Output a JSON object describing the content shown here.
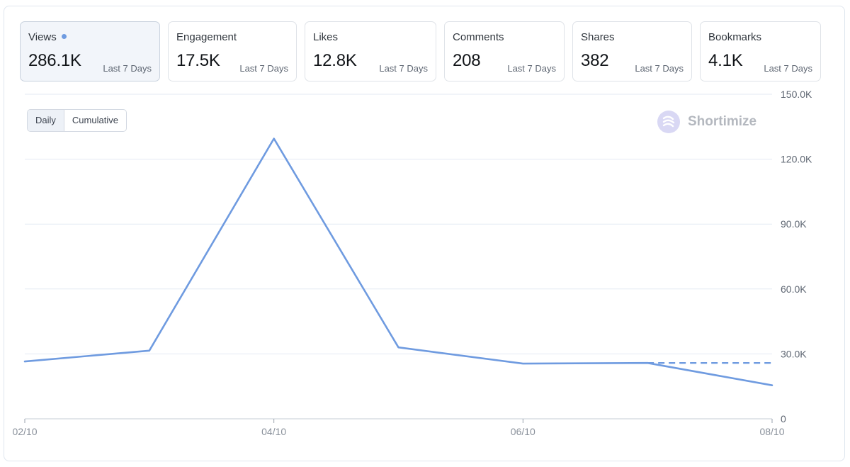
{
  "metrics": [
    {
      "label": "Views",
      "value": "286.1K",
      "period": "Last 7 Days",
      "active": true
    },
    {
      "label": "Engagement",
      "value": "17.5K",
      "period": "Last 7 Days",
      "active": false
    },
    {
      "label": "Likes",
      "value": "12.8K",
      "period": "Last 7 Days",
      "active": false
    },
    {
      "label": "Comments",
      "value": "208",
      "period": "Last 7 Days",
      "active": false
    },
    {
      "label": "Shares",
      "value": "382",
      "period": "Last 7 Days",
      "active": false
    },
    {
      "label": "Bookmarks",
      "value": "4.1K",
      "period": "Last 7 Days",
      "active": false
    }
  ],
  "toggle": {
    "daily": "Daily",
    "cumulative": "Cumulative",
    "selected": "Daily"
  },
  "brand": {
    "name": "Shortimize"
  },
  "colors": {
    "line": "#6f9be0",
    "grid": "#e3eaf3",
    "active_card": "#f2f5fa"
  },
  "chart_data": {
    "type": "line",
    "title": "",
    "xlabel": "",
    "ylabel": "",
    "x_ticks": [
      "02/10",
      "04/10",
      "06/10",
      "08/10"
    ],
    "y_ticks": [
      "0",
      "30.0K",
      "60.0K",
      "90.0K",
      "120.0K",
      "150.0K"
    ],
    "ylim": [
      0,
      150000
    ],
    "grid": true,
    "series": [
      {
        "x": [
          0,
          1,
          2,
          3,
          4,
          5,
          6
        ],
        "values": [
          26500,
          31500,
          129500,
          33000,
          25500,
          25800,
          15500
        ]
      }
    ],
    "projection": {
      "from_x": 5,
      "to_x": 6,
      "value": 25800,
      "style": "dashed"
    }
  }
}
